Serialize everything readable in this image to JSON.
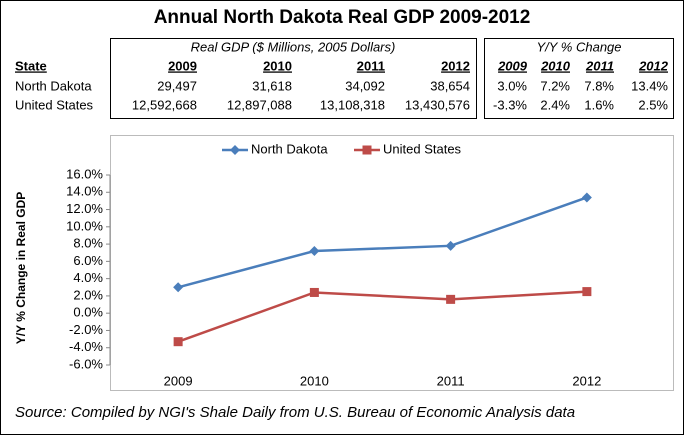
{
  "title": "Annual North Dakota Real GDP 2009-2012",
  "table": {
    "groups": [
      "Real GDP ($ Millions, 2005 Dollars)",
      "Y/Y % Change"
    ],
    "header": [
      "State",
      "2009",
      "2010",
      "2011",
      "2012",
      "2009",
      "2010",
      "2011",
      "2012"
    ],
    "rows": [
      [
        "North Dakota",
        "29,497",
        "31,618",
        "34,092",
        "38,654",
        "3.0%",
        "7.2%",
        "7.8%",
        "13.4%"
      ],
      [
        "United States",
        "12,592,668",
        "12,897,088",
        "13,108,318",
        "13,430,576",
        "-3.3%",
        "2.4%",
        "1.6%",
        "2.5%"
      ]
    ]
  },
  "chart_data": {
    "type": "line",
    "y_label": "Y/Y % Change in Real GDP",
    "categories": [
      "2009",
      "2010",
      "2011",
      "2012"
    ],
    "series": [
      {
        "name": "North Dakota",
        "color": "#4a7ebb",
        "marker": "diamond",
        "values": [
          3.0,
          7.2,
          7.8,
          13.4
        ]
      },
      {
        "name": "United States",
        "color": "#be4b48",
        "marker": "square",
        "values": [
          -3.3,
          2.4,
          1.6,
          2.5
        ]
      }
    ],
    "ylim": [
      -6,
      16
    ],
    "yticks": [
      {
        "value": -6,
        "label": "-6.0%"
      },
      {
        "value": -4,
        "label": "-4.0%"
      },
      {
        "value": -2,
        "label": "-2.0%"
      },
      {
        "value": 0,
        "label": "0.0%"
      },
      {
        "value": 2,
        "label": "2.0%"
      },
      {
        "value": 4,
        "label": "4.0%"
      },
      {
        "value": 6,
        "label": "6.0%"
      },
      {
        "value": 8,
        "label": "8.0%"
      },
      {
        "value": 10,
        "label": "10.0%"
      },
      {
        "value": 12,
        "label": "12.0%"
      },
      {
        "value": 14,
        "label": "14.0%"
      },
      {
        "value": 16,
        "label": "16.0%"
      }
    ],
    "legend": "top"
  },
  "source": "Source: Compiled by NGI's Shale Daily from U.S. Bureau of Economic Analysis data"
}
